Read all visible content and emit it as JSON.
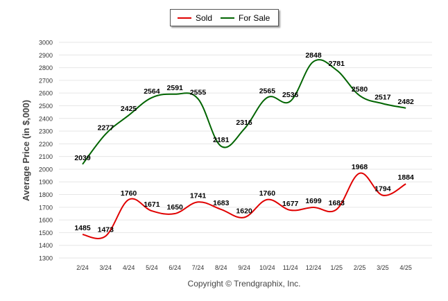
{
  "chart_data": {
    "type": "line",
    "categories": [
      "2/24",
      "3/24",
      "4/24",
      "5/24",
      "6/24",
      "7/24",
      "8/24",
      "9/24",
      "10/24",
      "11/24",
      "12/24",
      "1/25",
      "2/25",
      "3/25",
      "4/25"
    ],
    "series": [
      {
        "name": "Sold",
        "color": "#e00000",
        "values": [
          1485,
          1473,
          1760,
          1671,
          1650,
          1741,
          1683,
          1620,
          1760,
          1677,
          1699,
          1683,
          1968,
          1794,
          1884
        ]
      },
      {
        "name": "For Sale",
        "color": "#006400",
        "values": [
          2039,
          2277,
          2425,
          2564,
          2591,
          2555,
          2181,
          2316,
          2565,
          2536,
          2848,
          2781,
          2580,
          2517,
          2482
        ]
      }
    ],
    "ylabel": "Average Price (in $,000)",
    "xlabel": "",
    "ylim": [
      1300,
      3000
    ],
    "yticks": [
      1300,
      1400,
      1500,
      1600,
      1700,
      1800,
      1900,
      2000,
      2100,
      2200,
      2300,
      2400,
      2500,
      2600,
      2700,
      2800,
      2900,
      3000
    ],
    "grid": true,
    "legend_position": "top-center",
    "footer": "Copyright © Trendgraphix, Inc."
  }
}
